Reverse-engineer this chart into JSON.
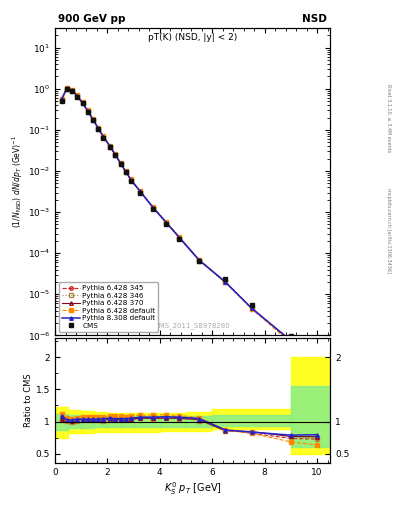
{
  "title_left": "900 GeV pp",
  "title_right": "NSD",
  "subplot_title": "pT(K) (NSD, |y| < 2)",
  "watermark": "CMS_2011_S8978280",
  "right_label": "Rivet 3.1.10, ≥ 3.4M events",
  "mcplots_label": "mcplots.cern.ch [arXiv:1306.3436]",
  "ylabel_ratio": "Ratio to CMS",
  "xlim": [
    0,
    10.5
  ],
  "ylim_main": [
    1e-06,
    30
  ],
  "ylim_ratio_lo": 0.35,
  "ylim_ratio_hi": 2.3,
  "cms_pt": [
    0.25,
    0.45,
    0.65,
    0.85,
    1.05,
    1.25,
    1.45,
    1.65,
    1.85,
    2.1,
    2.3,
    2.5,
    2.7,
    2.9,
    3.25,
    3.75,
    4.25,
    4.75,
    5.5,
    6.5,
    7.5,
    9.0,
    10.0
  ],
  "cms_y": [
    0.52,
    1.0,
    0.9,
    0.65,
    0.44,
    0.28,
    0.172,
    0.106,
    0.065,
    0.038,
    0.024,
    0.0148,
    0.0093,
    0.0058,
    0.003,
    0.0012,
    0.00052,
    0.000225,
    6.5e-05,
    2.3e-05,
    5.5e-06,
    9.5e-07,
    2.2e-07
  ],
  "py345_pt": [
    0.25,
    0.45,
    0.65,
    0.85,
    1.05,
    1.25,
    1.45,
    1.65,
    1.85,
    2.1,
    2.3,
    2.5,
    2.7,
    2.9,
    3.25,
    3.75,
    4.25,
    4.75,
    5.5,
    6.5,
    7.5,
    9.0,
    10.0
  ],
  "py345_y": [
    0.55,
    1.02,
    0.91,
    0.67,
    0.455,
    0.29,
    0.178,
    0.11,
    0.068,
    0.04,
    0.025,
    0.0155,
    0.0097,
    0.0061,
    0.0032,
    0.00128,
    0.00056,
    0.00024,
    6.8e-05,
    2e-05,
    4.5e-06,
    7e-07,
    1.6e-07
  ],
  "py346_pt": [
    0.25,
    0.45,
    0.65,
    0.85,
    1.05,
    1.25,
    1.45,
    1.65,
    1.85,
    2.1,
    2.3,
    2.5,
    2.7,
    2.9,
    3.25,
    3.75,
    4.25,
    4.75,
    5.5,
    6.5,
    7.5,
    9.0,
    10.0
  ],
  "py346_y": [
    0.53,
    1.01,
    0.9,
    0.66,
    0.448,
    0.285,
    0.175,
    0.108,
    0.066,
    0.039,
    0.0245,
    0.0152,
    0.0095,
    0.006,
    0.00315,
    0.00125,
    0.000545,
    0.000235,
    6.6e-05,
    1.95e-05,
    4.6e-06,
    7.2e-07,
    1.65e-07
  ],
  "py370_pt": [
    0.25,
    0.45,
    0.65,
    0.85,
    1.05,
    1.25,
    1.45,
    1.65,
    1.85,
    2.1,
    2.3,
    2.5,
    2.7,
    2.9,
    3.25,
    3.75,
    4.25,
    4.75,
    5.5,
    6.5,
    7.5,
    9.0,
    10.0
  ],
  "py370_y": [
    0.54,
    1.02,
    0.91,
    0.67,
    0.452,
    0.288,
    0.177,
    0.109,
    0.067,
    0.039,
    0.0247,
    0.0153,
    0.0096,
    0.006,
    0.00316,
    0.00126,
    0.000548,
    0.000236,
    6.7e-05,
    1.97e-05,
    4.65e-06,
    7.3e-07,
    1.68e-07
  ],
  "pydef_pt": [
    0.25,
    0.45,
    0.65,
    0.85,
    1.05,
    1.25,
    1.45,
    1.65,
    1.85,
    2.1,
    2.3,
    2.5,
    2.7,
    2.9,
    3.25,
    3.75,
    4.25,
    4.75,
    5.5,
    6.5,
    7.5,
    9.0,
    10.0
  ],
  "pydef_y": [
    0.58,
    1.05,
    0.94,
    0.69,
    0.47,
    0.3,
    0.184,
    0.113,
    0.07,
    0.041,
    0.026,
    0.016,
    0.01,
    0.0063,
    0.0033,
    0.00132,
    0.000575,
    0.000246,
    6.9e-05,
    2e-05,
    4.5e-06,
    6.5e-07,
    1.4e-07
  ],
  "py8def_pt": [
    0.25,
    0.45,
    0.65,
    0.85,
    1.05,
    1.25,
    1.45,
    1.65,
    1.85,
    2.1,
    2.3,
    2.5,
    2.7,
    2.9,
    3.25,
    3.75,
    4.25,
    4.75,
    5.5,
    6.5,
    7.5,
    9.0,
    10.0
  ],
  "py8def_y": [
    0.56,
    1.03,
    0.92,
    0.675,
    0.456,
    0.29,
    0.178,
    0.11,
    0.068,
    0.04,
    0.025,
    0.0155,
    0.0097,
    0.0061,
    0.0032,
    0.00128,
    0.000558,
    0.00024,
    6.8e-05,
    2e-05,
    4.6e-06,
    7.5e-07,
    1.75e-07
  ],
  "color_345": "#cc2222",
  "color_346": "#aa8844",
  "color_370": "#880022",
  "color_def": "#ff8800",
  "color_py8": "#2222cc",
  "color_cms": "#111111",
  "ratio_345": [
    1.06,
    1.02,
    1.01,
    1.03,
    1.034,
    1.036,
    1.035,
    1.038,
    1.046,
    1.053,
    1.042,
    1.047,
    1.043,
    1.052,
    1.067,
    1.067,
    1.077,
    1.067,
    1.046,
    0.87,
    0.818,
    0.737,
    0.727
  ],
  "ratio_346": [
    1.02,
    1.01,
    1.0,
    1.015,
    1.018,
    1.018,
    1.017,
    1.019,
    1.015,
    1.026,
    1.021,
    1.027,
    1.022,
    1.034,
    1.05,
    1.042,
    1.048,
    1.044,
    1.015,
    0.848,
    0.836,
    0.758,
    0.75
  ],
  "ratio_370": [
    1.04,
    1.02,
    1.01,
    1.031,
    1.027,
    1.029,
    1.029,
    1.028,
    1.031,
    1.026,
    1.029,
    1.034,
    1.032,
    1.034,
    1.053,
    1.05,
    1.054,
    1.049,
    1.031,
    0.857,
    0.845,
    0.768,
    0.764
  ],
  "ratio_def": [
    1.12,
    1.05,
    1.044,
    1.062,
    1.068,
    1.071,
    1.07,
    1.066,
    1.077,
    1.079,
    1.083,
    1.081,
    1.075,
    1.086,
    1.1,
    1.1,
    1.106,
    1.093,
    1.062,
    0.87,
    0.818,
    0.684,
    0.636
  ],
  "ratio_py8": [
    1.08,
    1.03,
    1.022,
    1.038,
    1.036,
    1.036,
    1.035,
    1.038,
    1.046,
    1.053,
    1.042,
    1.047,
    1.043,
    1.052,
    1.067,
    1.067,
    1.073,
    1.067,
    1.046,
    0.87,
    0.836,
    0.789,
    0.795
  ],
  "band_yellow_edges": [
    0.0,
    0.5,
    1.0,
    1.5,
    2.0,
    2.5,
    3.0,
    4.0,
    5.0,
    6.0,
    9.0,
    10.5
  ],
  "band_yellow_lo": [
    0.75,
    0.82,
    0.82,
    0.83,
    0.83,
    0.84,
    0.84,
    0.85,
    0.86,
    0.88,
    0.5,
    0.5
  ],
  "band_yellow_hi": [
    1.22,
    1.18,
    1.16,
    1.15,
    1.14,
    1.14,
    1.14,
    1.14,
    1.15,
    1.2,
    2.0,
    2.0
  ],
  "band_green_edges": [
    0.0,
    0.5,
    1.0,
    1.5,
    2.0,
    2.5,
    3.0,
    4.0,
    5.0,
    6.0,
    9.0,
    10.5
  ],
  "band_green_lo": [
    0.87,
    0.9,
    0.9,
    0.91,
    0.91,
    0.91,
    0.91,
    0.92,
    0.92,
    0.93,
    0.6,
    0.6
  ],
  "band_green_hi": [
    1.12,
    1.1,
    1.09,
    1.09,
    1.08,
    1.08,
    1.08,
    1.08,
    1.09,
    1.1,
    1.55,
    1.55
  ]
}
